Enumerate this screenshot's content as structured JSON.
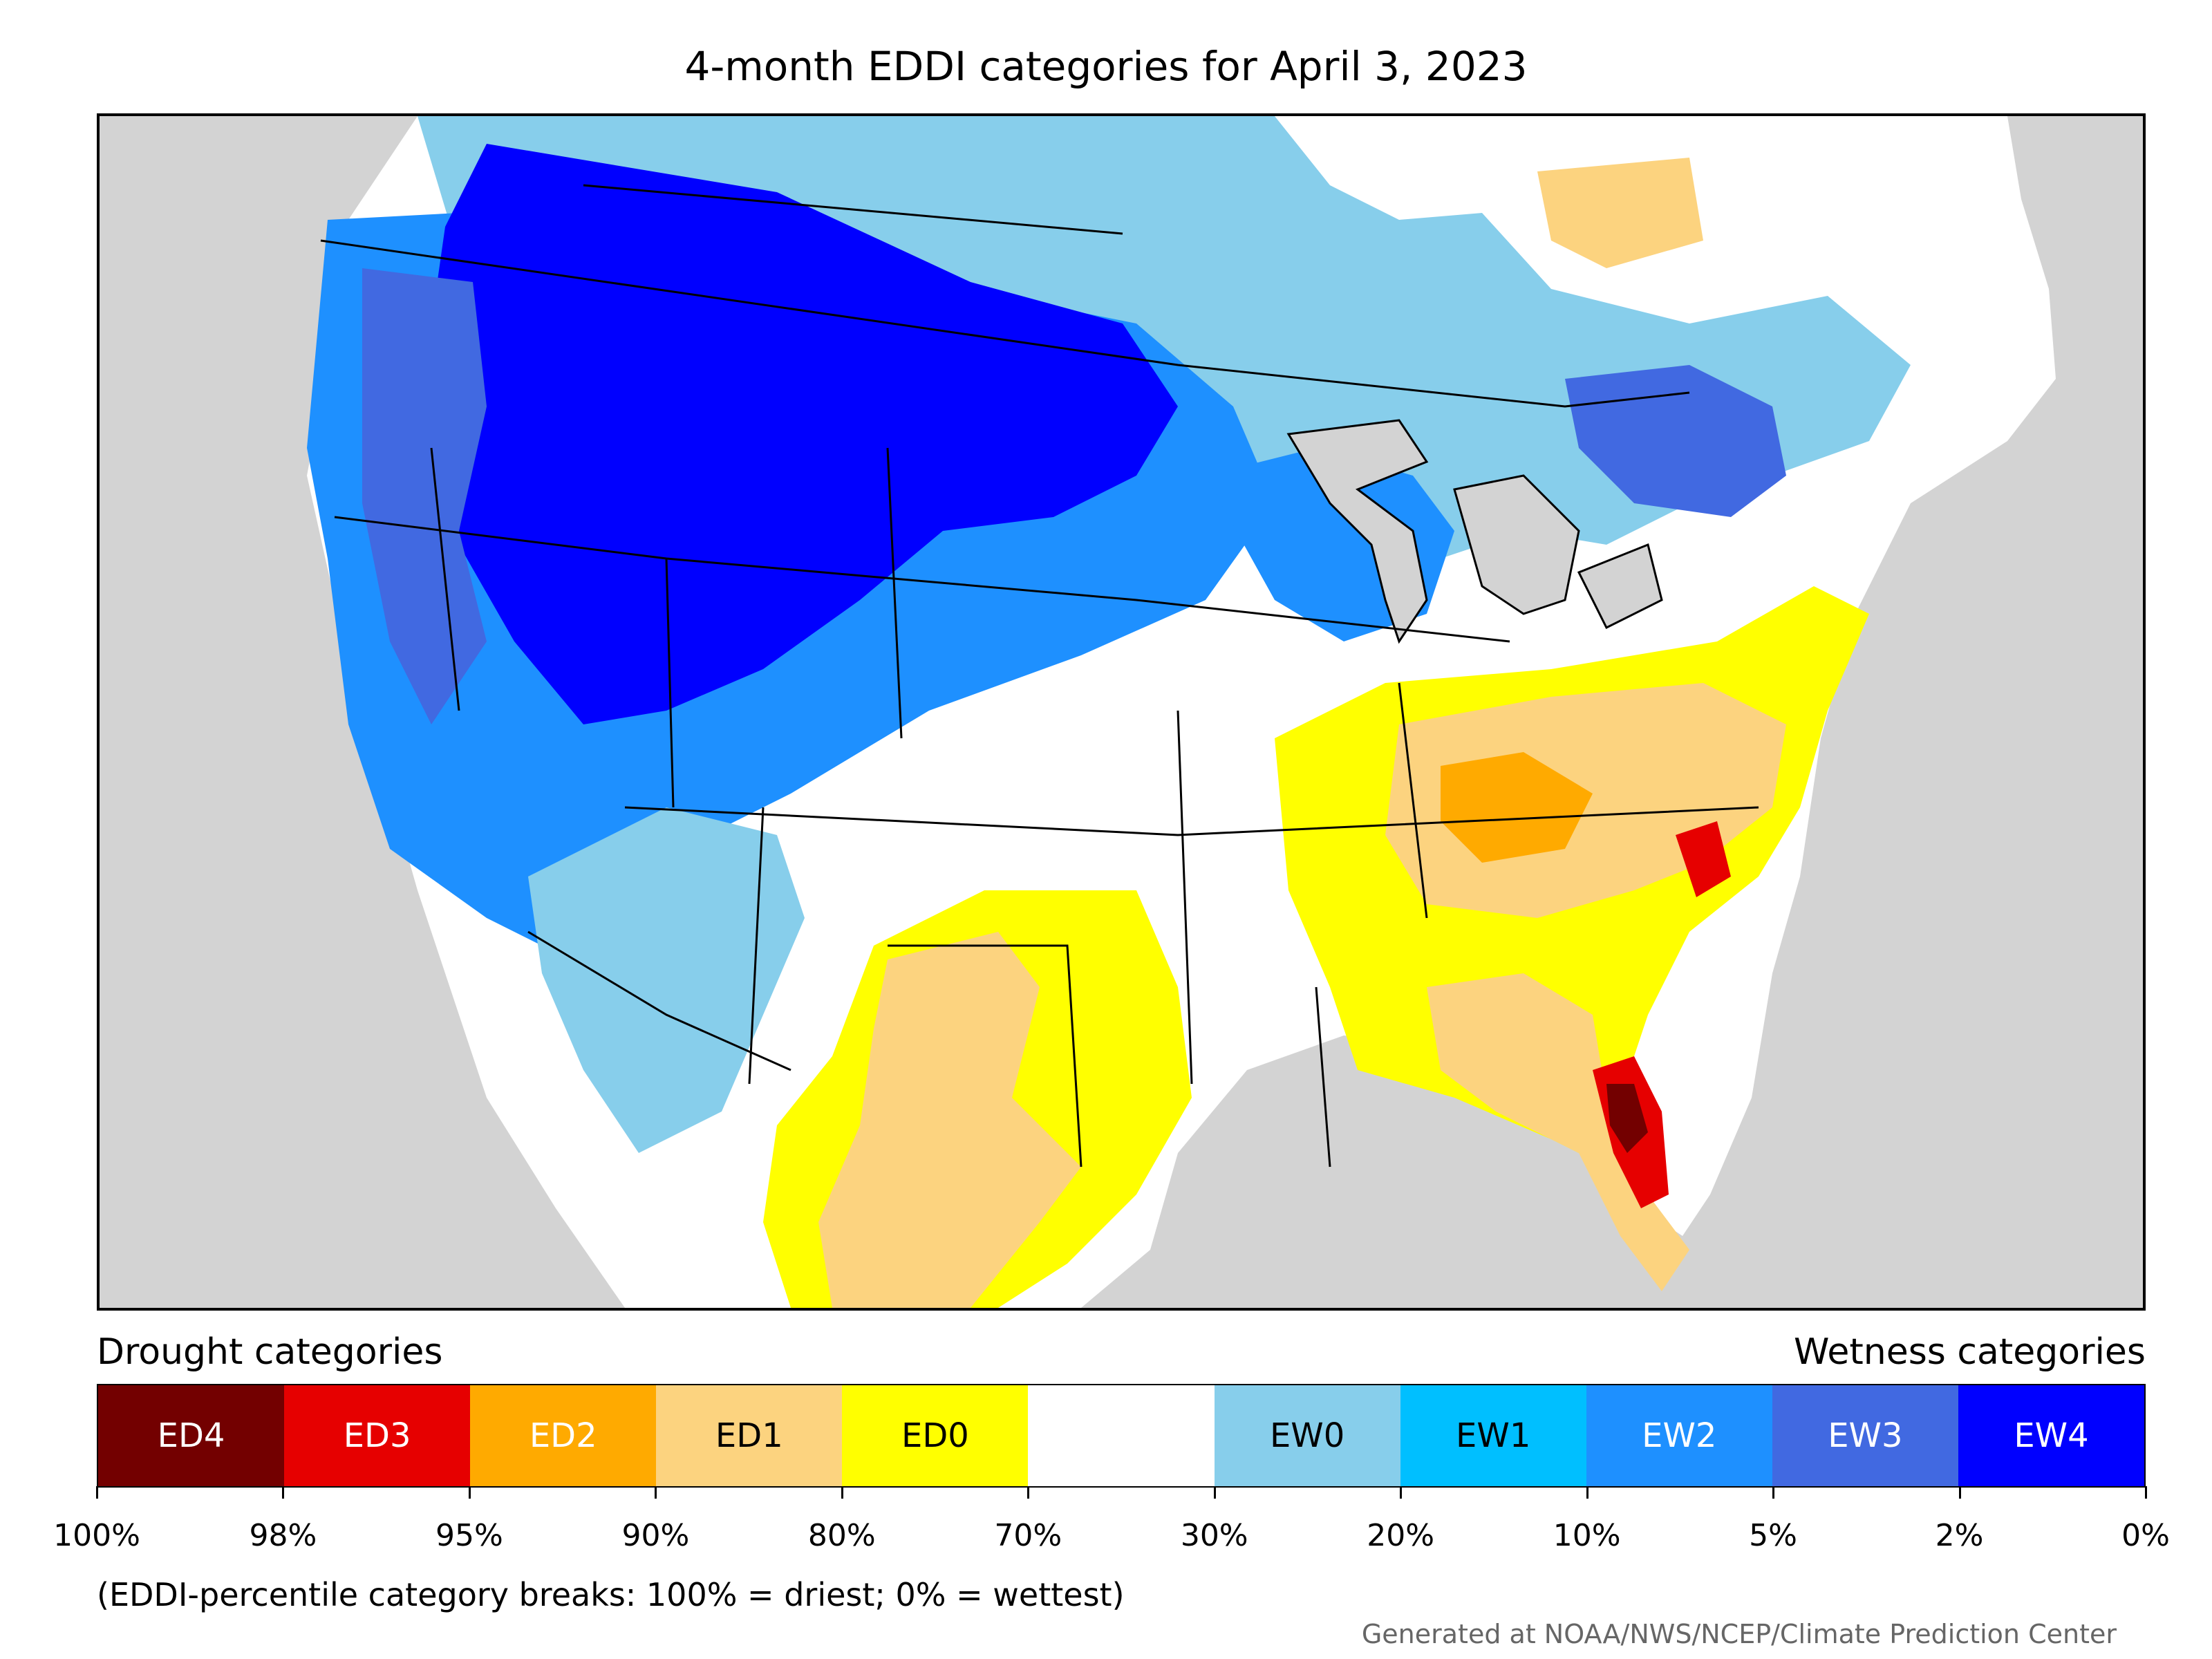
{
  "title": "4-month EDDI categories for April 3, 2023",
  "legend": {
    "drought_caption": "Drought categories",
    "wetness_caption": "Wetness categories",
    "categories": [
      {
        "label": "ED4",
        "color": "#730000",
        "text_color": "#ffffff"
      },
      {
        "label": "ED3",
        "color": "#e60000",
        "text_color": "#ffffff"
      },
      {
        "label": "ED2",
        "color": "#ffaa00",
        "text_color": "#ffffff"
      },
      {
        "label": "ED1",
        "color": "#fcd37f",
        "text_color": "#000000"
      },
      {
        "label": "ED0",
        "color": "#ffff00",
        "text_color": "#000000"
      },
      {
        "label": "",
        "color": "#ffffff",
        "text_color": "#000000"
      },
      {
        "label": "EW0",
        "color": "#87ceeb",
        "text_color": "#000000"
      },
      {
        "label": "EW1",
        "color": "#00bfff",
        "text_color": "#000000"
      },
      {
        "label": "EW2",
        "color": "#1e90ff",
        "text_color": "#ffffff"
      },
      {
        "label": "EW3",
        "color": "#4169e1",
        "text_color": "#ffffff"
      },
      {
        "label": "EW4",
        "color": "#0000ff",
        "text_color": "#ffffff"
      }
    ],
    "tick_labels": [
      "100%",
      "98%",
      "95%",
      "90%",
      "80%",
      "70%",
      "30%",
      "20%",
      "10%",
      "5%",
      "2%",
      "0%"
    ]
  },
  "note": "(EDDI-percentile category breaks: 100% = driest; 0% = wettest)",
  "credit": "Generated at NOAA/NWS/NCEP/Climate Prediction Center"
}
